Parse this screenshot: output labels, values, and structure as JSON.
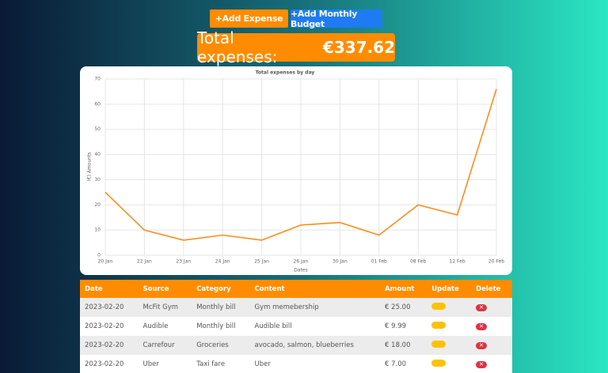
{
  "buttons": [
    "+Add Expense",
    "+Add Monthly Budget"
  ],
  "total": {
    "label": "Total expenses:",
    "amount": "€337.62"
  },
  "chart_data": {
    "type": "line",
    "title": "Total expenses by day",
    "y_label": "(€) Amounts",
    "x_label": "Dates",
    "categories": [
      "20 Jan",
      "22 Jan",
      "23 Jan",
      "24 Jan",
      "25 Jan",
      "26 Jan",
      "30 Jan",
      "01 Feb",
      "08 Feb",
      "12 Feb",
      "20 Feb"
    ],
    "series": [
      {
        "name": "Total expenses by day",
        "color": "#ff8c1a",
        "values": [
          25,
          10,
          6,
          8,
          6,
          12,
          13,
          8,
          20,
          16,
          66
        ]
      }
    ],
    "ylim": [
      0,
      70
    ],
    "yticks": [
      0,
      10,
      20,
      30,
      40,
      50,
      60,
      70
    ],
    "grid": true
  },
  "table": {
    "header": [
      "Date",
      "Source",
      "Category",
      "Content",
      "Amount",
      "Update",
      "Delete"
    ],
    "rows": [
      [
        "2023-02-20",
        "McFit Gym",
        "Monthly bill",
        "Gym memebership",
        "€ 25.00"
      ],
      [
        "2023-02-20",
        "Audible",
        "Monthly bill",
        "Audible bill",
        "€ 9.99"
      ],
      [
        "2023-02-20",
        "Carrefour",
        "Groceries",
        "avocado, salmon, blueberries",
        "€ 18.00"
      ],
      [
        "2023-02-20",
        "Uber",
        "Taxi fare",
        "Uber",
        "€ 7.00"
      ]
    ]
  }
}
